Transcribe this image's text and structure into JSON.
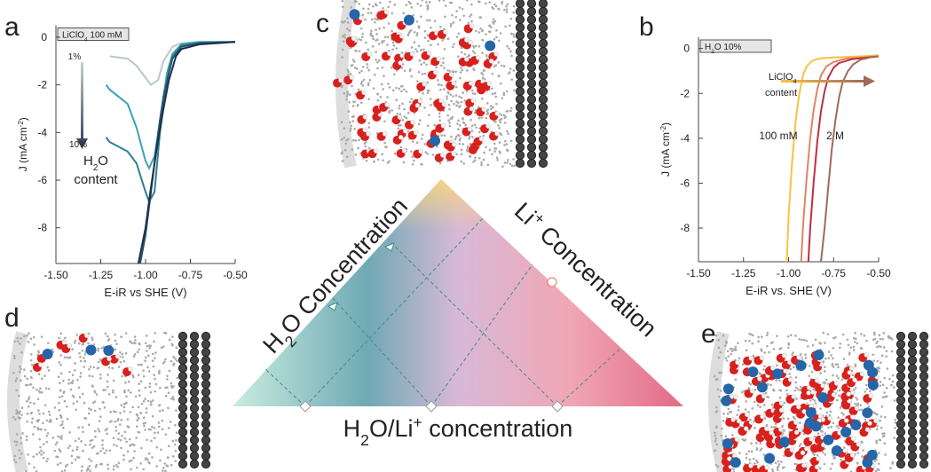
{
  "panel_labels": [
    "a",
    "b",
    "c",
    "d",
    "e"
  ],
  "chart_data": [
    {
      "type": "line",
      "tag": [
        {
          "text": "LiClO"
        },
        {
          "text": "4",
          "script": "sub"
        },
        {
          "text": " 100 mM"
        }
      ],
      "xlabel": "E-iR vs SHE (V)",
      "ylabel": [
        {
          "text": "J (mA cm"
        },
        {
          "text": "-2",
          "script": "sup"
        },
        {
          "text": ")"
        }
      ],
      "xlim": [
        -1.5,
        -0.5
      ],
      "ylim": [
        -9.5,
        0.5
      ],
      "xticks": [
        {
          "value": -1.5,
          "label": "-1.50"
        },
        -1.25,
        {
          "value": -1.0,
          "label": "-1.00"
        },
        -0.75,
        {
          "value": -0.5,
          "label": "-0.50"
        }
      ],
      "yticks": [
        0,
        -2,
        -4,
        -6,
        -8
      ],
      "series": [
        {
          "color": "#b9c8c8",
          "x": [
            -1.2,
            -1.1,
            -1.05,
            -1.0,
            -0.97,
            -0.93,
            -0.9,
            -0.85,
            -0.8,
            -0.7,
            -0.6,
            -0.5
          ],
          "values": [
            -0.8,
            -0.9,
            -1.2,
            -1.7,
            -2.0,
            -1.8,
            -1.0,
            -0.4,
            -0.25,
            -0.2,
            -0.2,
            -0.2
          ]
        },
        {
          "color": "#3aa3b2",
          "x": [
            -1.22,
            -1.2,
            -1.1,
            -1.05,
            -1.0,
            -0.98,
            -0.95,
            -0.92,
            -0.88,
            -0.85,
            -0.8,
            -0.7,
            -0.5
          ],
          "values": [
            -2.0,
            -2.2,
            -2.8,
            -3.8,
            -5.2,
            -5.5,
            -5.0,
            -3.5,
            -1.5,
            -0.7,
            -0.3,
            -0.2,
            -0.2
          ]
        },
        {
          "color": "#2b8096",
          "x": [
            -1.22,
            -1.2,
            -1.1,
            -1.05,
            -1.0,
            -0.98,
            -0.95,
            -0.92,
            -0.88,
            -0.85,
            -0.8,
            -0.7,
            -0.5
          ],
          "values": [
            -4.2,
            -4.4,
            -4.8,
            -5.3,
            -6.5,
            -6.9,
            -6.5,
            -4.0,
            -1.8,
            -0.8,
            -0.35,
            -0.25,
            -0.2
          ]
        },
        {
          "color": "#24546e",
          "x": [
            -1.03,
            -1.0,
            -0.97,
            -0.95,
            -0.92,
            -0.9,
            -0.87,
            -0.85,
            -0.8,
            -0.7,
            -0.5
          ],
          "values": [
            -9.5,
            -8.3,
            -6.5,
            -5.3,
            -3.5,
            -2.5,
            -1.5,
            -0.9,
            -0.4,
            -0.25,
            -0.2
          ]
        },
        {
          "color": "#1e2f4b",
          "x": [
            -1.04,
            -1.0,
            -0.97,
            -0.94,
            -0.9,
            -0.87,
            -0.83,
            -0.8,
            -0.7,
            -0.5
          ],
          "values": [
            -9.5,
            -8.0,
            -6.3,
            -4.8,
            -3.0,
            -1.8,
            -0.8,
            -0.5,
            -0.3,
            -0.2
          ]
        }
      ],
      "annotations": {
        "from": "1%",
        "to": "10%",
        "what": [
          {
            "text": "H"
          },
          {
            "text": "2",
            "script": "sub"
          },
          {
            "text": "O"
          }
        ],
        "what2": "content"
      }
    },
    {
      "type": "line",
      "tag": [
        {
          "text": "H"
        },
        {
          "text": "2",
          "script": "sub"
        },
        {
          "text": "O 10%"
        }
      ],
      "xlabel": "E-iR vs. SHE (V)",
      "ylabel": [
        {
          "text": "J (mA cm"
        },
        {
          "text": "-2",
          "script": "sup"
        },
        {
          "text": ")"
        }
      ],
      "xlim": [
        -1.5,
        -0.5
      ],
      "ylim": [
        -9.5,
        0.5
      ],
      "xticks": [
        {
          "value": -1.5,
          "label": "-1.50"
        },
        -1.25,
        {
          "value": -1.0,
          "label": "-1.00"
        },
        -0.75,
        {
          "value": -0.5,
          "label": "-0.50"
        }
      ],
      "yticks": [
        0,
        -2,
        -4,
        -6,
        -8
      ],
      "series": [
        {
          "color": "#f6c343",
          "x": [
            -1.01,
            -1.0,
            -0.98,
            -0.96,
            -0.94,
            -0.92,
            -0.9,
            -0.87,
            -0.83,
            -0.75,
            -0.6,
            -0.5
          ],
          "values": [
            -9.5,
            -7.5,
            -5.0,
            -3.2,
            -2.0,
            -1.2,
            -0.8,
            -0.55,
            -0.45,
            -0.4,
            -0.35,
            -0.3
          ]
        },
        {
          "color": "#e08464",
          "x": [
            -0.93,
            -0.92,
            -0.9,
            -0.88,
            -0.86,
            -0.84,
            -0.82,
            -0.79,
            -0.75,
            -0.68,
            -0.58,
            -0.5
          ],
          "values": [
            -9.5,
            -8.0,
            -5.8,
            -4.0,
            -2.7,
            -1.8,
            -1.2,
            -0.8,
            -0.6,
            -0.45,
            -0.4,
            -0.35
          ]
        },
        {
          "color": "#c22d40",
          "x": [
            -0.89,
            -0.88,
            -0.86,
            -0.84,
            -0.82,
            -0.8,
            -0.78,
            -0.75,
            -0.72,
            -0.65,
            -0.56,
            -0.5
          ],
          "values": [
            -9.5,
            -8.0,
            -5.9,
            -4.1,
            -2.8,
            -1.9,
            -1.3,
            -0.85,
            -0.65,
            -0.48,
            -0.4,
            -0.35
          ]
        },
        {
          "color": "#a2695b",
          "x": [
            -0.82,
            -0.8,
            -0.78,
            -0.76,
            -0.74,
            -0.72,
            -0.7,
            -0.67,
            -0.64,
            -0.6,
            -0.55,
            -0.5
          ],
          "values": [
            -9.5,
            -8.0,
            -6.2,
            -4.5,
            -3.2,
            -2.2,
            -1.5,
            -1.0,
            -0.7,
            -0.5,
            -0.4,
            -0.35
          ]
        }
      ],
      "annotations": {
        "from": "100 mM",
        "to": "2 M",
        "what": [
          {
            "text": "LiClO"
          },
          {
            "text": "4",
            "script": "sub"
          }
        ],
        "what2": "content"
      }
    }
  ],
  "diagram": {
    "left_label": [
      {
        "text": "H"
      },
      {
        "text": "2",
        "script": "sub"
      },
      {
        "text": "O Concentration"
      }
    ],
    "right_label": [
      {
        "text": "Li"
      },
      {
        "text": "+",
        "script": "sup"
      },
      {
        "text": " Concentration"
      }
    ],
    "bottom_label": [
      {
        "text": "H"
      },
      {
        "text": "2",
        "script": "sub"
      },
      {
        "text": "O/Li"
      },
      {
        "text": "+",
        "script": "sup"
      },
      {
        "text": " concentration"
      }
    ]
  }
}
